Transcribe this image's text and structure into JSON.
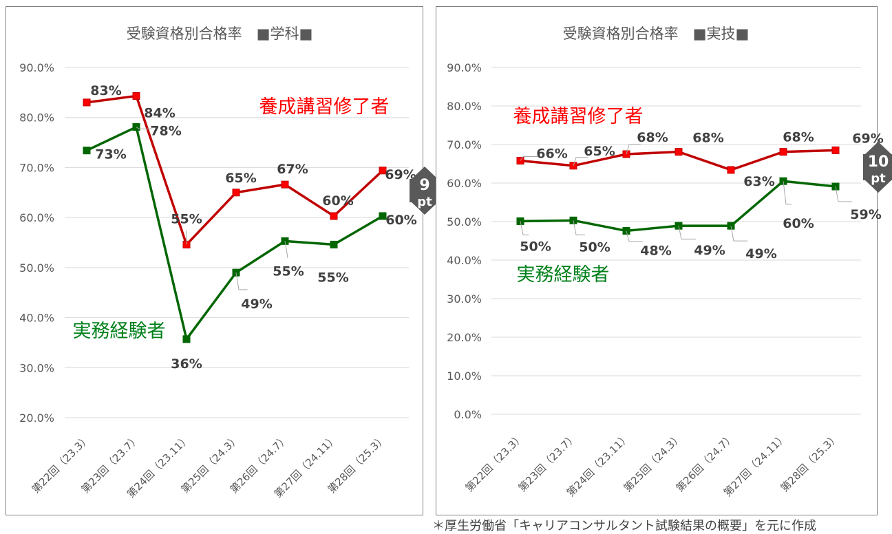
{
  "source_note": "＊厚生労働省「キャリアコンサルタント試験結果の概要」を元に作成",
  "colors": {
    "series_training": "#c00000",
    "series_training_marker": "#ff0000",
    "series_experience": "#006600",
    "series_experience_text": "#00801a",
    "badge": "#595959",
    "label_text": "#404040",
    "axis_text": "#595959",
    "grid": "#d9d9d9"
  },
  "chart_data": [
    {
      "type": "line",
      "title": "受験資格別合格率　■学科■",
      "categories": [
        "第22回（23.3）",
        "第23回（23.7）",
        "第24回（23.11）",
        "第25回（24.3）",
        "第26回（24.7）",
        "第27回（24.11）",
        "第28回（25.3）"
      ],
      "ylim": [
        20,
        90
      ],
      "yticks": [
        "90.0%",
        "80.0%",
        "70.0%",
        "60.0%",
        "50.0%",
        "40.0%",
        "30.0%",
        "20.0%"
      ],
      "grid": true,
      "series": [
        {
          "name": "養成講習修了者",
          "values": [
            83,
            84.3,
            54.6,
            65,
            66.6,
            60.3,
            69.4
          ],
          "labels": [
            "83%",
            "84%",
            "55%",
            "65%",
            "67%",
            "60%",
            "69%"
          ]
        },
        {
          "name": "実務経験者",
          "values": [
            73.4,
            78.1,
            35.7,
            49,
            55.3,
            54.6,
            60.3
          ],
          "labels": [
            "73%",
            "78%",
            "36%",
            "49%",
            "55%",
            "55%",
            "60%"
          ]
        }
      ],
      "gap_badge": {
        "value": "9",
        "unit": "pt"
      }
    },
    {
      "type": "line",
      "title": "受験資格別合格率　■実技■",
      "categories": [
        "第22回（23.3）",
        "第23回（23.7）",
        "第24回（23.11）",
        "第25回（24.3）",
        "第26回（24.7）",
        "第27回（24.11）",
        "第28回（25.3）"
      ],
      "ylim": [
        0,
        90
      ],
      "yticks": [
        "90.0%",
        "80.0%",
        "70.0%",
        "60.0%",
        "50.0%",
        "40.0%",
        "30.0%",
        "20.0%",
        "10.0%",
        "0.0%"
      ],
      "grid": true,
      "series": [
        {
          "name": "養成講習修了者",
          "values": [
            65.8,
            64.5,
            67.5,
            68.1,
            63.4,
            68.1,
            68.5
          ],
          "labels": [
            "66%",
            "65%",
            "68%",
            "68%",
            "63%",
            "68%",
            "69%"
          ]
        },
        {
          "name": "実務経験者",
          "values": [
            50.1,
            50.3,
            47.6,
            48.9,
            48.9,
            60.5,
            59.1
          ],
          "labels": [
            "50%",
            "50%",
            "48%",
            "49%",
            "49%",
            "60%",
            "59%"
          ]
        }
      ],
      "gap_badge": {
        "value": "10",
        "unit": "pt"
      }
    }
  ]
}
